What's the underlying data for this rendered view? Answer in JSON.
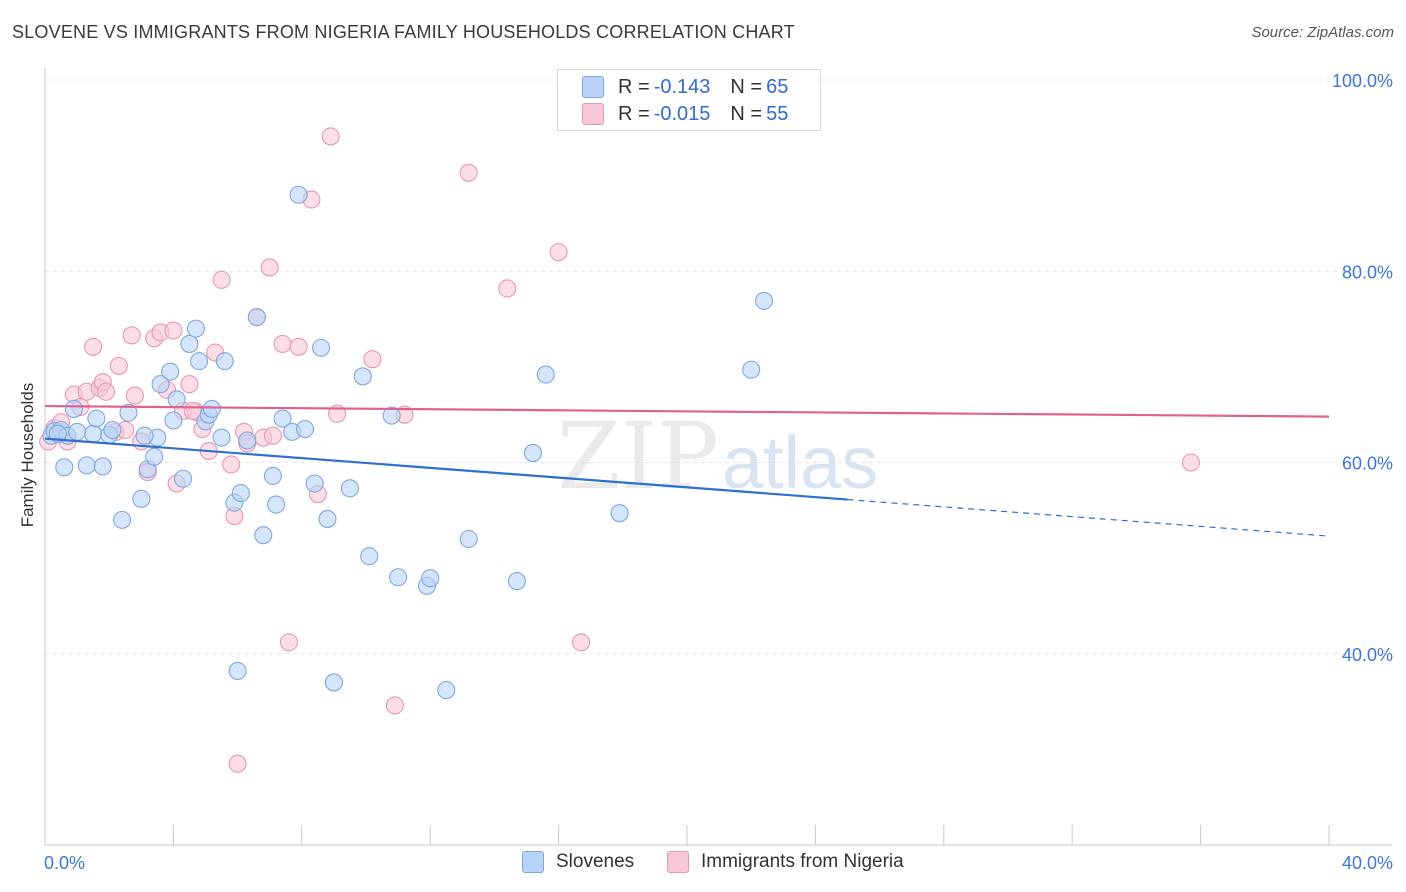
{
  "title": "SLOVENE VS IMMIGRANTS FROM NIGERIA FAMILY HOUSEHOLDS CORRELATION CHART",
  "source": "Source: ZipAtlas.com",
  "legend_top": [
    {
      "r_label": "R =",
      "r_value": "-0.143",
      "n_label": "N =",
      "n_value": "65"
    },
    {
      "r_label": "R =",
      "r_value": "-0.015",
      "n_label": "N =",
      "n_value": "55"
    }
  ],
  "watermark": {
    "zip": "ZIP",
    "atlas": "atlas"
  },
  "colors": {
    "blue_fill": "#b9d3f7",
    "blue_stroke": "#7fa8e0",
    "blue_line": "#2f6fcf",
    "pink_fill": "#f9c8d8",
    "pink_stroke": "#e896b3",
    "pink_line": "#e0628c",
    "tick_text": "#3c78d8",
    "grid": "#e4e4e4"
  },
  "chart_data": {
    "type": "scatter",
    "title": "SLOVENE VS IMMIGRANTS FROM NIGERIA FAMILY HOUSEHOLDS CORRELATION CHART",
    "xlabel": "",
    "ylabel": "Family Households",
    "xlim": [
      0,
      40
    ],
    "ylim": [
      20,
      100
    ],
    "x_tick_labels": [
      "0.0%",
      "40.0%"
    ],
    "y_ticks": [
      40,
      60,
      80,
      100
    ],
    "y_tick_labels": [
      "40.0%",
      "60.0%",
      "80.0%",
      "100.0%"
    ],
    "legend_position": "bottom-center",
    "series": [
      {
        "name": "Slovenes",
        "r": -0.143,
        "n": 65,
        "trend": {
          "x0": 0,
          "y0": 62.5,
          "x1": 40,
          "y1": 52.3,
          "solid_until_x": 25
        },
        "points": [
          [
            0.2,
            62.8
          ],
          [
            0.3,
            63.3
          ],
          [
            0.5,
            63.4
          ],
          [
            0.6,
            59.5
          ],
          [
            0.7,
            62.8
          ],
          [
            0.9,
            65.6
          ],
          [
            1.3,
            59.7
          ],
          [
            1.5,
            63.0
          ],
          [
            1.6,
            64.6
          ],
          [
            1.8,
            59.6
          ],
          [
            2.0,
            62.9
          ],
          [
            2.1,
            63.4
          ],
          [
            2.4,
            54.0
          ],
          [
            2.6,
            65.2
          ],
          [
            3.0,
            56.2
          ],
          [
            3.2,
            59.3
          ],
          [
            3.4,
            60.6
          ],
          [
            3.5,
            62.6
          ],
          [
            3.6,
            68.2
          ],
          [
            3.9,
            69.5
          ],
          [
            4.0,
            64.4
          ],
          [
            4.1,
            66.6
          ],
          [
            4.3,
            58.3
          ],
          [
            4.5,
            72.4
          ],
          [
            4.7,
            74.0
          ],
          [
            4.8,
            70.6
          ],
          [
            5.0,
            64.3
          ],
          [
            5.1,
            65.0
          ],
          [
            5.2,
            65.6
          ],
          [
            5.5,
            62.6
          ],
          [
            5.6,
            70.6
          ],
          [
            5.9,
            55.8
          ],
          [
            6.1,
            56.8
          ],
          [
            6.3,
            62.3
          ],
          [
            6.6,
            75.2
          ],
          [
            6.8,
            52.4
          ],
          [
            7.1,
            58.6
          ],
          [
            7.2,
            55.6
          ],
          [
            7.4,
            64.6
          ],
          [
            7.7,
            63.2
          ],
          [
            7.9,
            88.0
          ],
          [
            8.1,
            63.5
          ],
          [
            8.4,
            57.8
          ],
          [
            8.6,
            72.0
          ],
          [
            8.8,
            54.1
          ],
          [
            9.5,
            57.3
          ],
          [
            9.9,
            69.0
          ],
          [
            10.1,
            50.2
          ],
          [
            10.8,
            64.9
          ],
          [
            11.0,
            48.0
          ],
          [
            11.9,
            47.1
          ],
          [
            12.0,
            47.9
          ],
          [
            12.5,
            36.2
          ],
          [
            13.2,
            52.0
          ],
          [
            14.7,
            47.6
          ],
          [
            15.2,
            61.0
          ],
          [
            15.6,
            69.2
          ],
          [
            17.9,
            54.7
          ],
          [
            22.0,
            69.7
          ],
          [
            22.4,
            76.9
          ],
          [
            6.0,
            38.2
          ],
          [
            9.0,
            37.0
          ],
          [
            0.4,
            63.0
          ],
          [
            1.0,
            63.2
          ],
          [
            3.1,
            62.8
          ]
        ]
      },
      {
        "name": "Immigrants from Nigeria",
        "r": -0.015,
        "n": 55,
        "trend": {
          "x0": 0,
          "y0": 65.9,
          "x1": 40,
          "y1": 64.8
        },
        "points": [
          [
            0.1,
            62.2
          ],
          [
            0.3,
            63.6
          ],
          [
            0.5,
            64.2
          ],
          [
            0.7,
            62.2
          ],
          [
            0.9,
            67.1
          ],
          [
            1.1,
            65.8
          ],
          [
            1.3,
            67.4
          ],
          [
            1.5,
            72.1
          ],
          [
            1.7,
            67.8
          ],
          [
            1.8,
            68.4
          ],
          [
            1.9,
            67.4
          ],
          [
            2.2,
            63.2
          ],
          [
            2.3,
            70.1
          ],
          [
            2.5,
            63.4
          ],
          [
            2.7,
            73.3
          ],
          [
            2.8,
            67.0
          ],
          [
            3.0,
            62.2
          ],
          [
            3.2,
            59.0
          ],
          [
            3.4,
            73.0
          ],
          [
            3.6,
            73.6
          ],
          [
            3.8,
            67.6
          ],
          [
            4.0,
            73.8
          ],
          [
            4.1,
            57.8
          ],
          [
            4.3,
            65.4
          ],
          [
            4.5,
            68.2
          ],
          [
            4.7,
            65.3
          ],
          [
            4.9,
            63.5
          ],
          [
            5.1,
            61.2
          ],
          [
            5.3,
            71.5
          ],
          [
            5.5,
            79.1
          ],
          [
            5.8,
            59.8
          ],
          [
            5.9,
            54.4
          ],
          [
            6.2,
            63.2
          ],
          [
            6.3,
            62.0
          ],
          [
            6.6,
            75.2
          ],
          [
            6.8,
            62.6
          ],
          [
            7.0,
            80.4
          ],
          [
            7.1,
            62.8
          ],
          [
            7.4,
            72.4
          ],
          [
            7.6,
            41.2
          ],
          [
            7.9,
            72.1
          ],
          [
            8.3,
            87.5
          ],
          [
            8.5,
            56.7
          ],
          [
            8.9,
            94.1
          ],
          [
            9.1,
            65.1
          ],
          [
            10.2,
            70.8
          ],
          [
            10.9,
            34.6
          ],
          [
            11.2,
            65.0
          ],
          [
            13.2,
            90.3
          ],
          [
            14.4,
            78.2
          ],
          [
            16.0,
            82.0
          ],
          [
            16.7,
            41.2
          ],
          [
            35.7,
            60.0
          ],
          [
            6.0,
            28.5
          ],
          [
            4.6,
            65.4
          ]
        ]
      }
    ]
  }
}
